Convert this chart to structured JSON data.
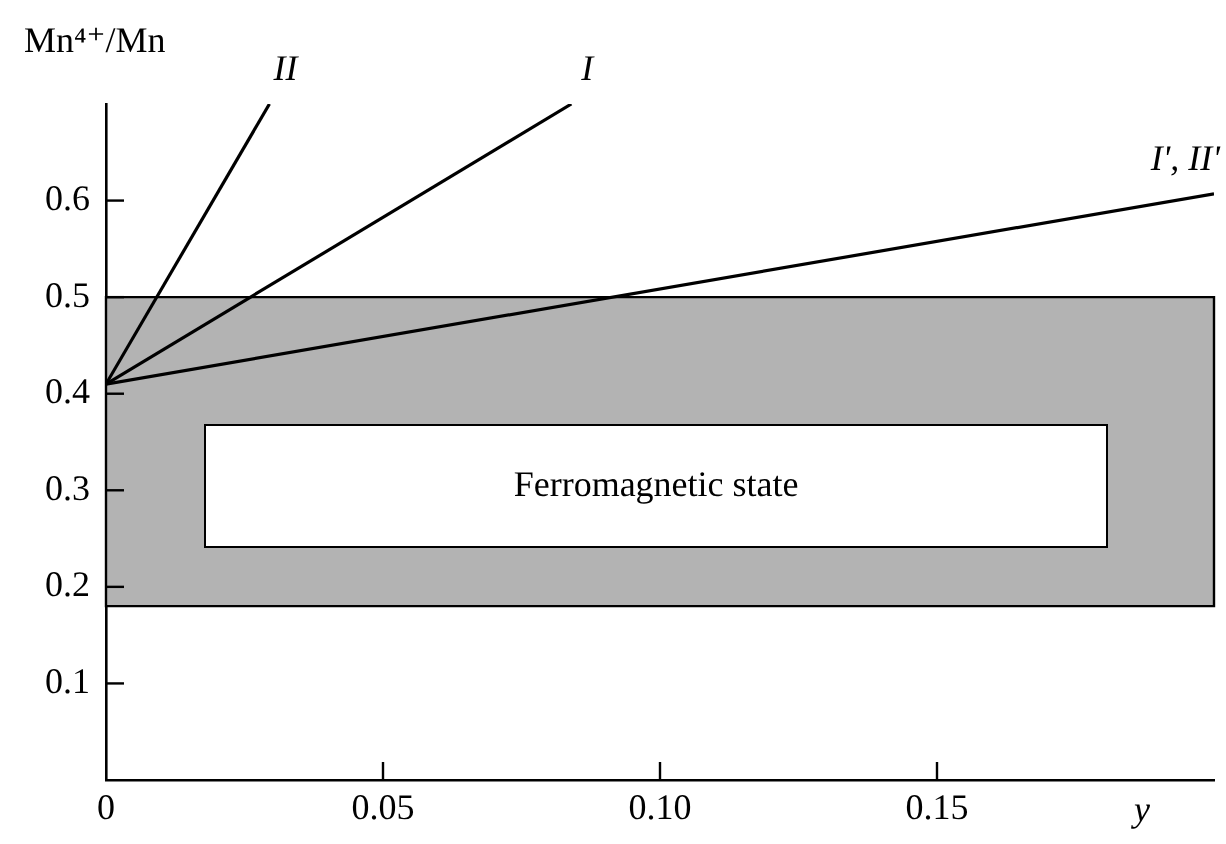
{
  "chart_data": {
    "type": "line",
    "ylabel": "Mn⁴⁺/Mn",
    "xlabel": "y",
    "xlim": [
      0,
      0.2
    ],
    "xticks": [
      0,
      0.05,
      {
        "value": 0.1,
        "label": "0.10"
      },
      0.15
    ],
    "ylim": [
      0,
      0.7
    ],
    "yticks": [
      0.1,
      0.2,
      0.3,
      0.4,
      0.5,
      0.6
    ],
    "series": [
      {
        "name": "II",
        "color": "#000000",
        "x": [
          0,
          0.0295
        ],
        "values": [
          0.41,
          0.7
        ]
      },
      {
        "name": "I",
        "color": "#000000",
        "x": [
          0,
          0.084
        ],
        "values": [
          0.41,
          0.7
        ]
      },
      {
        "name": "I', II'",
        "color": "#000000",
        "x": [
          0,
          0.2
        ],
        "values": [
          0.41,
          0.607
        ]
      }
    ],
    "bands": [
      {
        "axis": "y",
        "from": 0.18,
        "to": 0.5,
        "color": "#b3b3b3"
      }
    ],
    "annotations": [
      "Ferromagnetic state"
    ],
    "marker": "none",
    "line_style": "solid",
    "grid": false,
    "legend": false
  }
}
